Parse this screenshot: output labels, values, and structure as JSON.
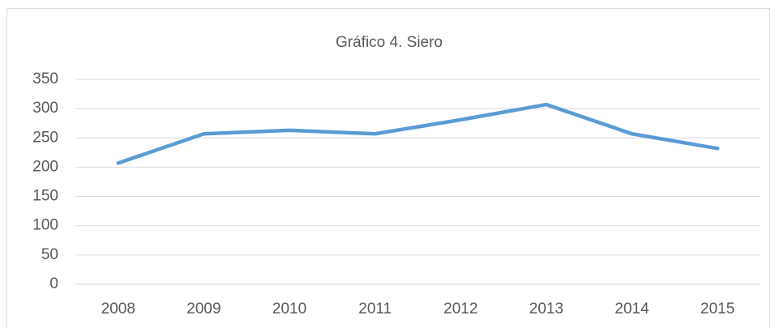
{
  "chart_data": {
    "type": "line",
    "title": "Gráfico 4. Siero",
    "categories": [
      "2008",
      "2009",
      "2010",
      "2011",
      "2012",
      "2013",
      "2014",
      "2015"
    ],
    "series": [
      {
        "name": "Siero",
        "color": "#5b9bd5",
        "values": [
          207,
          257,
          263,
          257,
          281,
          307,
          257,
          232
        ]
      }
    ],
    "ylim": [
      0,
      350
    ],
    "yticks": [
      0,
      50,
      100,
      150,
      200,
      250,
      300,
      350
    ],
    "grid": true
  }
}
